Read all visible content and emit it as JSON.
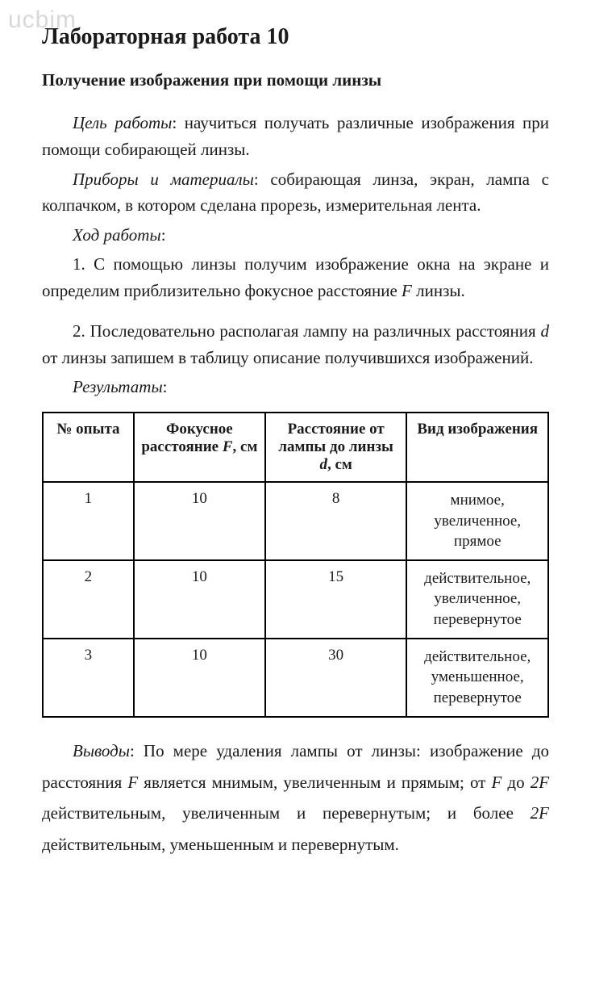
{
  "watermark": "ucbim",
  "title": "Лабораторная работа 10",
  "subtitle": "Получение изображения при помощи линзы",
  "goal_label": "Цель работы",
  "goal_text": ": научиться получать различные изображения при помощи собирающей линзы.",
  "equipment_label": "Приборы и материалы",
  "equipment_text": ": собирающая линза, экран, лампа с колпачком, в котором сделана прорезь, измерительная лента.",
  "procedure_label": "Ход работы",
  "procedure_colon": ":",
  "step1_a": "1. С помощью линзы получим изображение окна на экране и определим приблизительно фокусное расстояние ",
  "step1_var": "F",
  "step1_b": " линзы.",
  "step2_a": "2. Последовательно располагая лампу на различных расстояния ",
  "step2_var": "d",
  "step2_b": " от линзы запишем в таблицу описание получившихся изображений.",
  "results_label": "Результаты",
  "results_colon": ":",
  "table": {
    "headers": {
      "c1": "№ опыта",
      "c2_a": "Фокусное расстояние ",
      "c2_var": "F",
      "c2_b": ", см",
      "c3_a": "Расстояние от лампы до линзы ",
      "c3_var": "d",
      "c3_b": ", см",
      "c4": "Вид изобра­жения"
    },
    "rows": [
      {
        "n": "1",
        "f": "10",
        "d": "8",
        "desc": "мнимое, увеличенное, прямое"
      },
      {
        "n": "2",
        "f": "10",
        "d": "15",
        "desc": "действитель­ное, увеличенное, перевернутое"
      },
      {
        "n": "3",
        "f": "10",
        "d": "30",
        "desc": "действитель­ное, уменьшенное, перевернутое"
      }
    ]
  },
  "conclusion_label": "Выводы",
  "conclusion_a": ": По мере удаления лампы от линзы: изображение до расстояния ",
  "conclusion_v1": "F",
  "conclusion_b": " является мнимым, увеличенным и прямым; от ",
  "conclusion_v2": "F",
  "conclusion_c": " до ",
  "conclusion_v3": "2F",
  "conclusion_d": " действительным, увеличенным и перевернутым; и более ",
  "conclusion_v4": "2F",
  "conclusion_e": " действительным, уменьшенным и перевернутым."
}
